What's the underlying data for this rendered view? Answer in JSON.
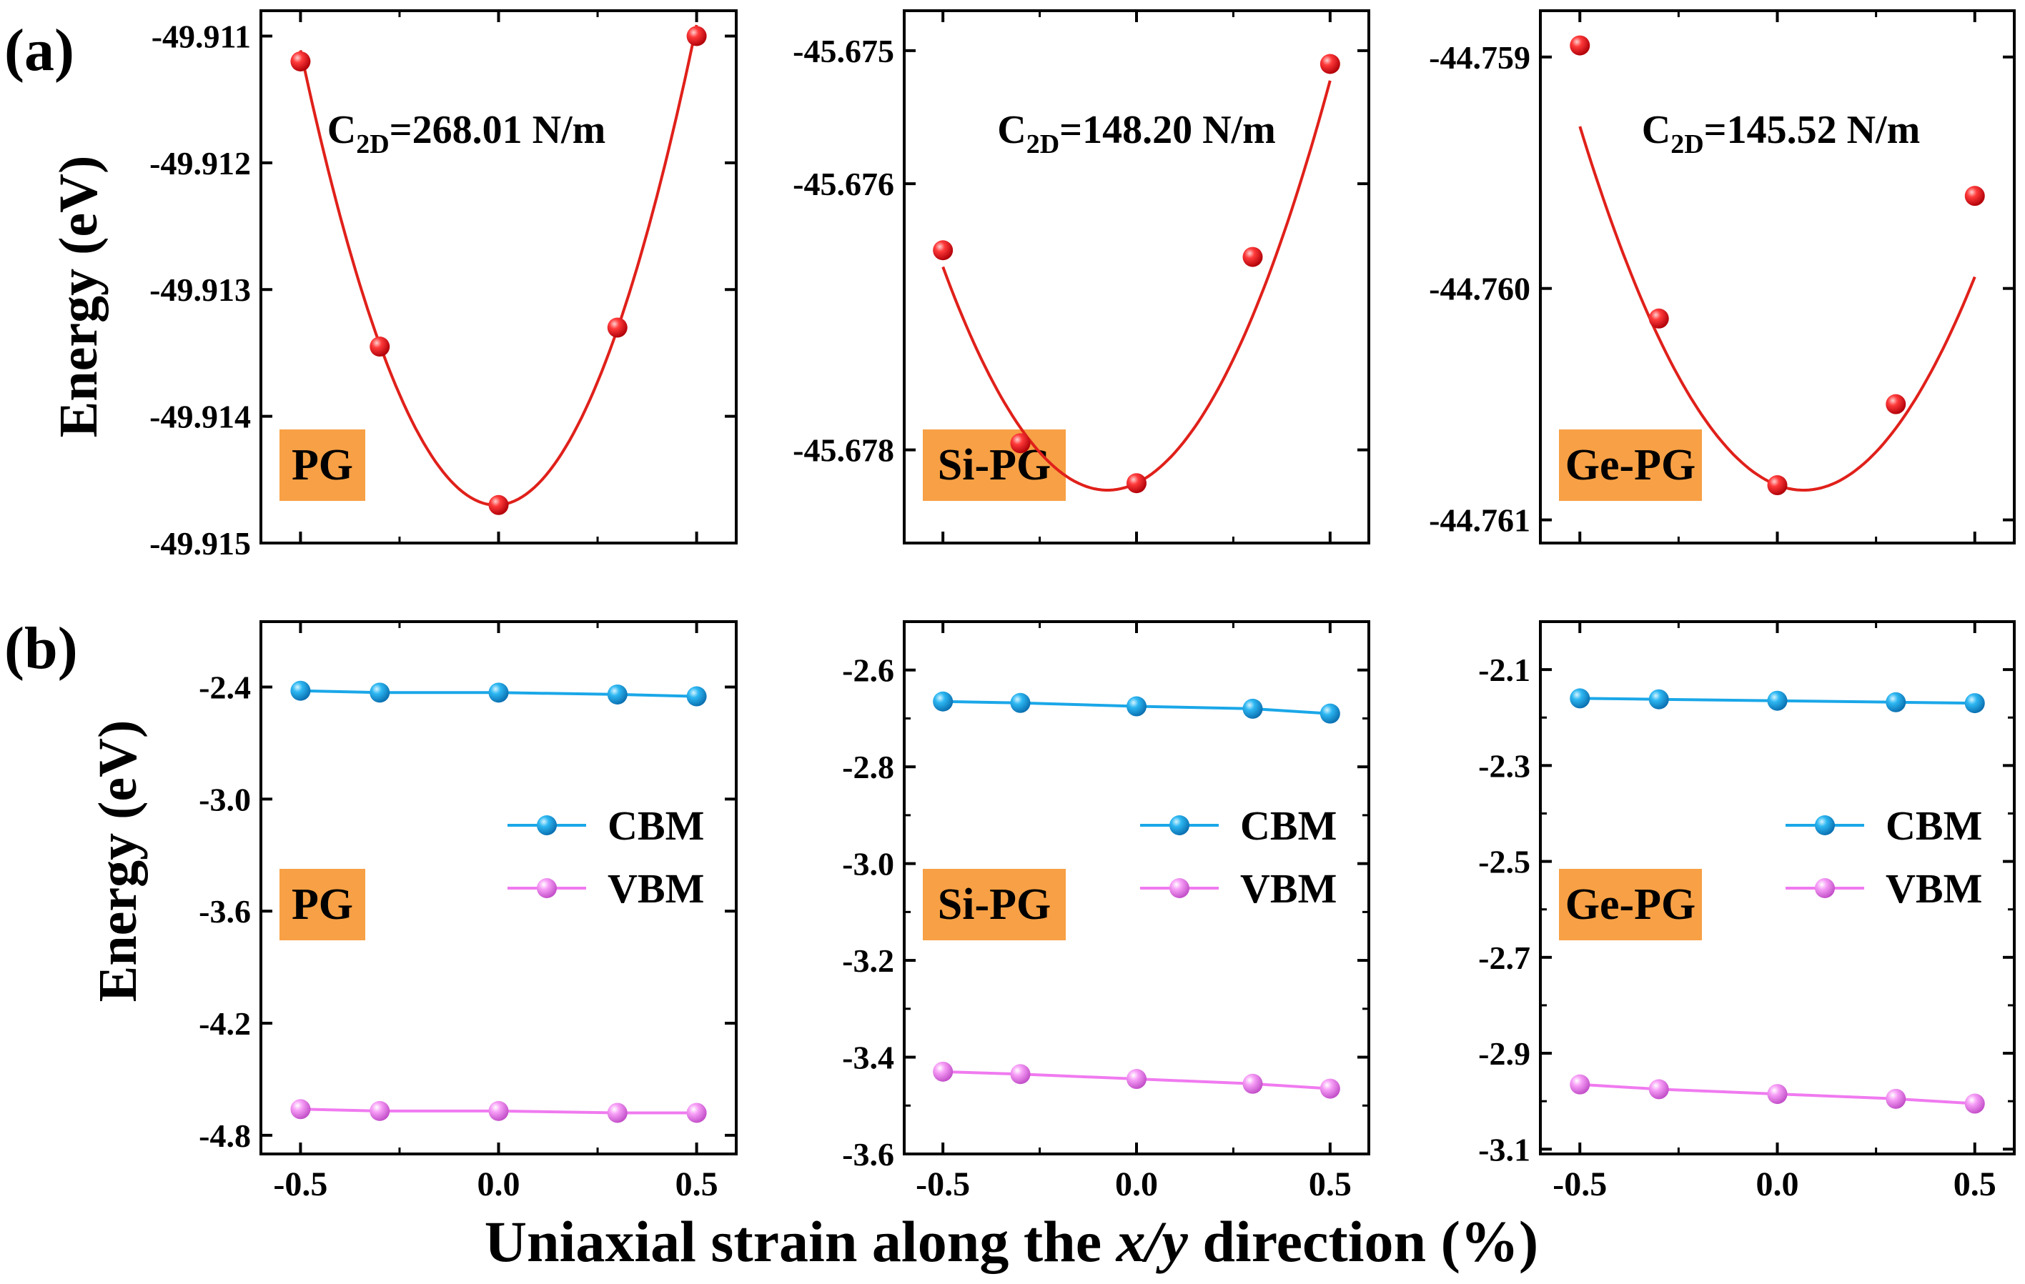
{
  "figure": {
    "panel_labels": [
      "(a)",
      "(b)"
    ],
    "ylabel_a": "Energy (eV)",
    "ylabel_b": "Energy (eV)",
    "xlabel": {
      "prefix": "Uniaxial strain along the ",
      "italic": "x/y",
      "suffix": " direction (%)"
    },
    "x_ticks": [
      "-0.5",
      "0.0",
      "0.5"
    ]
  },
  "colors": {
    "fit_line": "#e0201a",
    "fit_marker": "#e8141c",
    "cbm": "#1aa7e8",
    "vbm": "#f07af0",
    "tag_bg": "#f7a045",
    "axis": "#000000"
  },
  "chart_data": [
    {
      "type": "scatter",
      "row": "a",
      "material": "PG",
      "annotation": {
        "sym": "C",
        "sub": "2D",
        "text": "=268.01 N/m"
      },
      "xlim": [
        -0.6,
        0.6
      ],
      "ylim": [
        -49.915,
        -49.9108
      ],
      "x": [
        -0.5,
        -0.3,
        0.0,
        0.3,
        0.5
      ],
      "y": [
        -49.9112,
        -49.91345,
        -49.9147,
        -49.9133,
        -49.911
      ],
      "y_ticks": [
        "-49.911",
        "-49.912",
        "-49.913",
        "-49.914",
        "-49.915"
      ],
      "y_tick_values": [
        -49.911,
        -49.912,
        -49.913,
        -49.914,
        -49.915
      ],
      "fit": {
        "type": "quadratic",
        "a": 0.01475,
        "b": 0.0002,
        "c": -49.9147
      }
    },
    {
      "type": "scatter",
      "row": "a",
      "material": "Si-PG",
      "annotation": {
        "sym": "C",
        "sub": "2D",
        "text": "=148.20 N/m"
      },
      "xlim": [
        -0.6,
        0.6
      ],
      "ylim": [
        -45.6787,
        -45.6747
      ],
      "x": [
        -0.5,
        -0.3,
        0.0,
        0.3,
        0.5
      ],
      "y": [
        -45.6765,
        -45.67795,
        -45.67825,
        -45.67655,
        -45.6751
      ],
      "y_ticks": [
        "-45.675",
        "-45.676",
        "-45.678"
      ],
      "y_tick_values": [
        -45.675,
        -45.676,
        -45.678
      ],
      "fit": {
        "type": "quadratic",
        "a": 0.0093,
        "b": 0.0014,
        "c": -45.67825
      }
    },
    {
      "type": "scatter",
      "row": "a",
      "material": "Ge-PG",
      "annotation": {
        "sym": "C",
        "sub": "2D",
        "text": "=145.52 N/m"
      },
      "xlim": [
        -0.6,
        0.6
      ],
      "ylim": [
        -44.7611,
        -44.7588
      ],
      "x": [
        -0.5,
        -0.3,
        0.0,
        0.3,
        0.5
      ],
      "y": [
        -44.75895,
        -44.76013,
        -44.76085,
        -44.7605,
        -44.7596
      ],
      "y_ticks": [
        "-44.759",
        "-44.760",
        "-44.761"
      ],
      "y_tick_values": [
        -44.759,
        -44.76,
        -44.761
      ],
      "fit": {
        "type": "quadratic",
        "a": 0.0049,
        "b": -0.00065,
        "c": -44.76085
      }
    },
    {
      "type": "line",
      "row": "b",
      "material": "PG",
      "xlim": [
        -0.6,
        0.6
      ],
      "ylim": [
        -4.9,
        -2.05
      ],
      "x": [
        -0.5,
        -0.3,
        0.0,
        0.3,
        0.5
      ],
      "series": [
        {
          "name": "CBM",
          "values": [
            -2.42,
            -2.43,
            -2.43,
            -2.44,
            -2.45
          ]
        },
        {
          "name": "VBM",
          "values": [
            -4.66,
            -4.67,
            -4.67,
            -4.68,
            -4.68
          ]
        }
      ],
      "y_ticks": [
        "-2.4",
        "-3.0",
        "-3.6",
        "-4.2",
        "-4.8"
      ],
      "y_tick_values": [
        -2.4,
        -3.0,
        -3.6,
        -4.2,
        -4.8
      ]
    },
    {
      "type": "line",
      "row": "b",
      "material": "Si-PG",
      "xlim": [
        -0.6,
        0.6
      ],
      "ylim": [
        -3.6,
        -2.5
      ],
      "x": [
        -0.5,
        -0.3,
        0.0,
        0.3,
        0.5
      ],
      "series": [
        {
          "name": "CBM",
          "values": [
            -2.665,
            -2.668,
            -2.675,
            -2.68,
            -2.69
          ]
        },
        {
          "name": "VBM",
          "values": [
            -3.43,
            -3.435,
            -3.445,
            -3.455,
            -3.465
          ]
        }
      ],
      "y_ticks": [
        "-2.6",
        "-2.8",
        "-3.0",
        "-3.2",
        "-3.4",
        "-3.6"
      ],
      "y_tick_values": [
        -2.6,
        -2.8,
        -3.0,
        -3.2,
        -3.4,
        -3.6
      ],
      "y_minor": [
        -2.7,
        -2.9,
        -3.1,
        -3.3,
        -3.5
      ]
    },
    {
      "type": "line",
      "row": "b",
      "material": "Ge-PG",
      "xlim": [
        -0.6,
        0.6
      ],
      "ylim": [
        -3.11,
        -2.0
      ],
      "x": [
        -0.5,
        -0.3,
        0.0,
        0.3,
        0.5
      ],
      "series": [
        {
          "name": "CBM",
          "values": [
            -2.16,
            -2.162,
            -2.165,
            -2.168,
            -2.17
          ]
        },
        {
          "name": "VBM",
          "values": [
            -2.965,
            -2.975,
            -2.985,
            -2.995,
            -3.005
          ]
        }
      ],
      "y_ticks": [
        "-2.1",
        "-2.3",
        "-2.5",
        "-2.7",
        "-2.9",
        "-3.1"
      ],
      "y_tick_values": [
        -2.1,
        -2.3,
        -2.5,
        -2.7,
        -2.9,
        -3.1
      ],
      "y_minor": [
        -2.2,
        -2.4,
        -2.6,
        -2.8,
        -3.0
      ]
    }
  ]
}
